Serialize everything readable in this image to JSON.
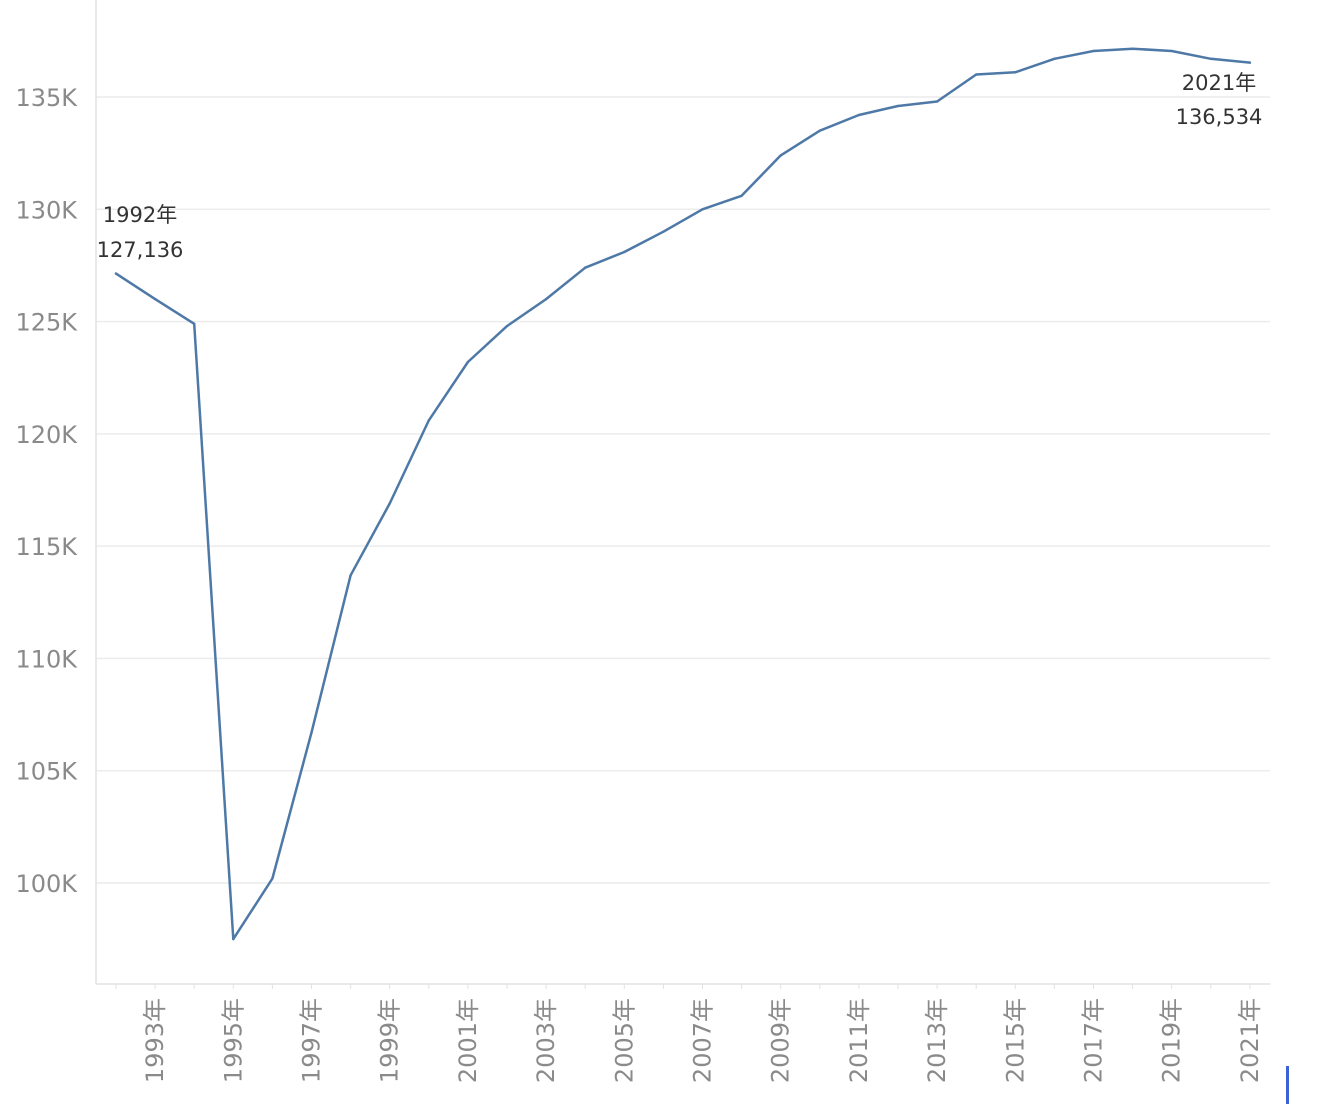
{
  "colors": {
    "series": "#4e79a7"
  },
  "chart_data": {
    "type": "line",
    "x": [
      1992,
      1993,
      1994,
      1995,
      1996,
      1997,
      1998,
      1999,
      2000,
      2001,
      2002,
      2003,
      2004,
      2005,
      2006,
      2007,
      2008,
      2009,
      2010,
      2011,
      2012,
      2013,
      2014,
      2015,
      2016,
      2017,
      2018,
      2019,
      2020,
      2021
    ],
    "series": [
      {
        "values": [
          127136,
          126000,
          124900,
          97500,
          100200,
          106700,
          113700,
          116900,
          120600,
          123200,
          124800,
          126000,
          127400,
          128100,
          129000,
          130000,
          130600,
          132400,
          133500,
          134200,
          134600,
          134800,
          136000,
          136100,
          136700,
          137050,
          137150,
          137050,
          136700,
          136534
        ]
      }
    ],
    "ylim": [
      95500,
      138000
    ],
    "y_ticks": [
      100000,
      105000,
      110000,
      115000,
      120000,
      125000,
      130000,
      135000
    ],
    "y_tick_labels": [
      "100K",
      "105K",
      "110K",
      "115K",
      "120K",
      "125K",
      "130K",
      "135K"
    ],
    "x_tick_labels": [
      "1993年",
      "1995年",
      "1997年",
      "1999年",
      "2001年",
      "2003年",
      "2005年",
      "2007年",
      "2009年",
      "2011年",
      "2013年",
      "2015年",
      "2017年",
      "2019年",
      "2021年"
    ],
    "x_tick_years": [
      1993,
      1995,
      1997,
      1999,
      2001,
      2003,
      2005,
      2007,
      2009,
      2011,
      2013,
      2015,
      2017,
      2019,
      2021
    ],
    "grid": true,
    "annotations": [
      {
        "year": 1992,
        "label_year": "1992年",
        "label_value": "127,136"
      },
      {
        "year": 2021,
        "label_year": "2021年",
        "label_value": "136,534"
      }
    ]
  }
}
